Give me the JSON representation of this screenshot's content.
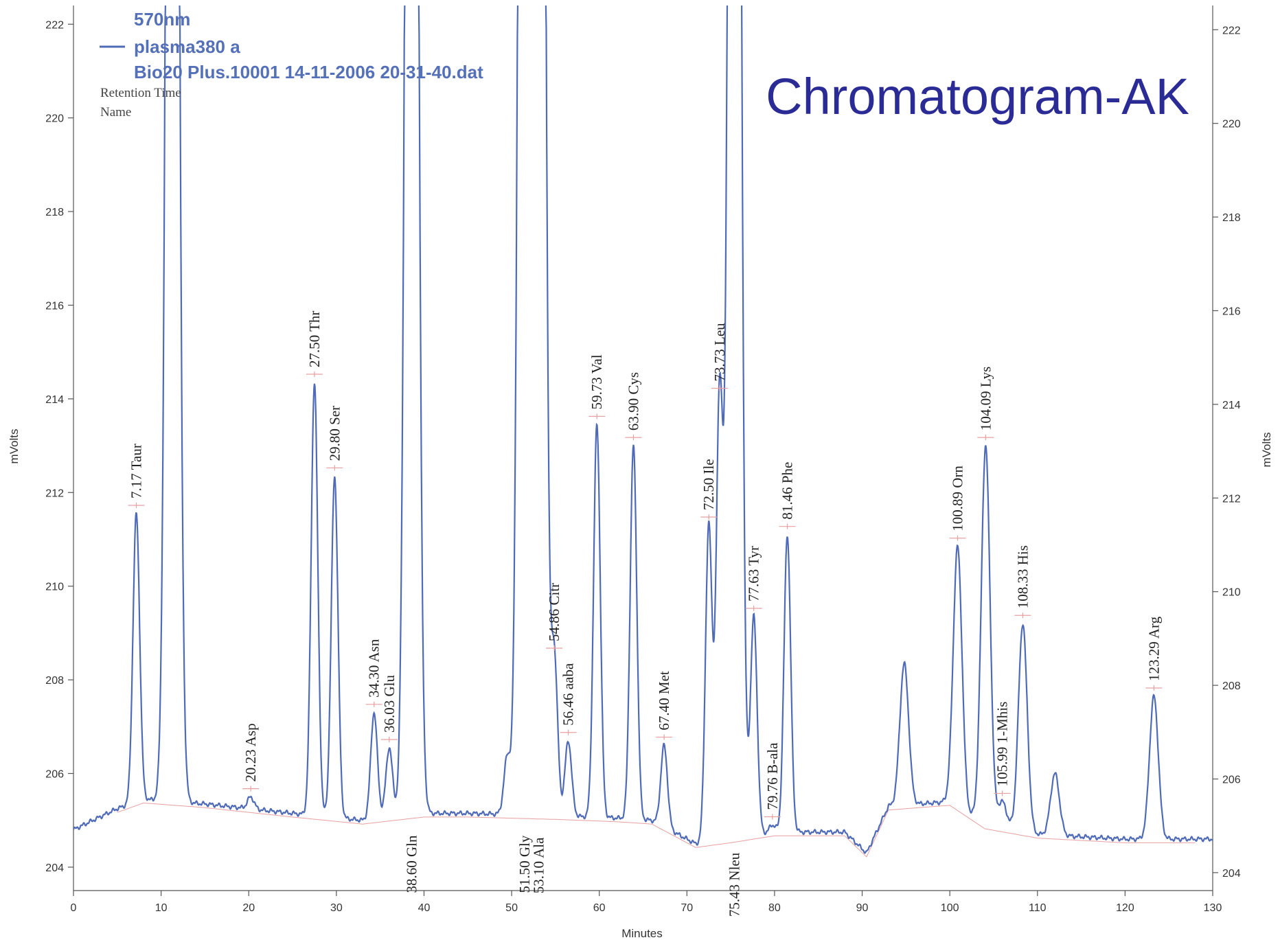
{
  "chart_data": {
    "type": "line",
    "title": "Chromatogram-AK",
    "xlabel": "Minutes",
    "ylabel": "mVolts",
    "ylabel_right": "mVolts",
    "xlim": [
      0,
      130
    ],
    "ylim": [
      203.5,
      222.4
    ],
    "x_ticks": [
      0,
      10,
      20,
      30,
      40,
      50,
      60,
      70,
      80,
      90,
      100,
      110,
      120,
      130
    ],
    "y_ticks": [
      204,
      206,
      208,
      210,
      212,
      214,
      216,
      218,
      220,
      222
    ],
    "y_ticks_right": [
      204,
      206,
      208,
      210,
      212,
      214,
      216,
      218,
      220,
      222
    ],
    "grid": false,
    "legend": {
      "position": "top-left",
      "line1": "570nm",
      "line2": "plasma380 a",
      "line3": "Bio20 Plus.10001 14-11-2006 20-31-40.dat",
      "line4": "Retention Time",
      "line5": "Name"
    },
    "series": [
      {
        "name": "plasma380 a",
        "color": "#4f6bb8"
      }
    ],
    "baseline": [
      [
        0,
        204.8
      ],
      [
        5,
        205.25
      ],
      [
        8,
        205.45
      ],
      [
        15,
        205.35
      ],
      [
        25,
        205.15
      ],
      [
        33,
        205.0
      ],
      [
        40,
        205.15
      ],
      [
        45,
        205.15
      ],
      [
        55,
        205.1
      ],
      [
        62,
        205.05
      ],
      [
        66,
        205.0
      ],
      [
        71,
        204.5
      ],
      [
        75,
        204.6
      ],
      [
        80,
        204.75
      ],
      [
        88,
        204.75
      ],
      [
        90.5,
        204.3
      ],
      [
        93,
        205.3
      ],
      [
        100,
        205.4
      ],
      [
        104,
        204.9
      ],
      [
        110,
        204.7
      ],
      [
        120,
        204.6
      ],
      [
        130,
        204.6
      ]
    ],
    "peaks": [
      {
        "rt": 7.17,
        "height": 211.55,
        "label": "7.17  Taur",
        "label_pos": "above"
      },
      {
        "rt": 11.3,
        "height": 260.0,
        "label": "",
        "label_pos": "none"
      },
      {
        "rt": 20.23,
        "height": 205.5,
        "label": "20.23  Asp",
        "label_pos": "above"
      },
      {
        "rt": 27.5,
        "height": 214.35,
        "label": "27.50  Thr",
        "label_pos": "above"
      },
      {
        "rt": 29.8,
        "height": 212.35,
        "label": "29.80  Ser",
        "label_pos": "above"
      },
      {
        "rt": 34.3,
        "height": 207.3,
        "label": "34.30  Asn",
        "label_pos": "above"
      },
      {
        "rt": 36.03,
        "height": 206.55,
        "label": "36.03  Glu",
        "label_pos": "above"
      },
      {
        "rt": 38.6,
        "height": 260.0,
        "label": "38.60  Gln",
        "label_pos": "below"
      },
      {
        "rt": 49.5,
        "height": 206.35,
        "label": "",
        "label_pos": "none"
      },
      {
        "rt": 51.5,
        "height": 260.0,
        "label": "51.50  Gly",
        "label_pos": "below"
      },
      {
        "rt": 53.1,
        "height": 260.0,
        "label": "53.10  Ala",
        "label_pos": "below"
      },
      {
        "rt": 54.86,
        "height": 208.5,
        "label": "54.86  Citr",
        "label_pos": "above"
      },
      {
        "rt": 56.46,
        "height": 206.7,
        "label": "56.46  aaba",
        "label_pos": "above"
      },
      {
        "rt": 59.73,
        "height": 213.45,
        "label": "59.73  Val",
        "label_pos": "above"
      },
      {
        "rt": 63.9,
        "height": 213.0,
        "label": "63.90  Cys",
        "label_pos": "above"
      },
      {
        "rt": 67.4,
        "height": 206.6,
        "label": "67.40  Met",
        "label_pos": "above"
      },
      {
        "rt": 72.5,
        "height": 211.3,
        "label": "72.50  Ile",
        "label_pos": "above"
      },
      {
        "rt": 73.73,
        "height": 214.05,
        "label": "73.73  Leu",
        "label_pos": "above"
      },
      {
        "rt": 75.43,
        "height": 260.0,
        "label": "75.43  Nleu",
        "label_pos": "below"
      },
      {
        "rt": 77.63,
        "height": 209.35,
        "label": "77.63  Tyr",
        "label_pos": "above"
      },
      {
        "rt": 79.76,
        "height": 204.9,
        "label": "79.76  B-ala",
        "label_pos": "above"
      },
      {
        "rt": 81.46,
        "height": 211.1,
        "label": "81.46  Phe",
        "label_pos": "above"
      },
      {
        "rt": 94.8,
        "height": 208.35,
        "label": "",
        "label_pos": "none"
      },
      {
        "rt": 100.89,
        "height": 210.85,
        "label": "100.89  Orn",
        "label_pos": "above"
      },
      {
        "rt": 104.09,
        "height": 213.0,
        "label": "104.09  Lys",
        "label_pos": "above"
      },
      {
        "rt": 105.99,
        "height": 205.4,
        "label": "105.99  1-Mhis",
        "label_pos": "above"
      },
      {
        "rt": 108.33,
        "height": 209.2,
        "label": "108.33  His",
        "label_pos": "above"
      },
      {
        "rt": 112.0,
        "height": 206.0,
        "label": "",
        "label_pos": "none"
      },
      {
        "rt": 123.29,
        "height": 207.65,
        "label": "123.29  Arg",
        "label_pos": "above"
      }
    ]
  }
}
